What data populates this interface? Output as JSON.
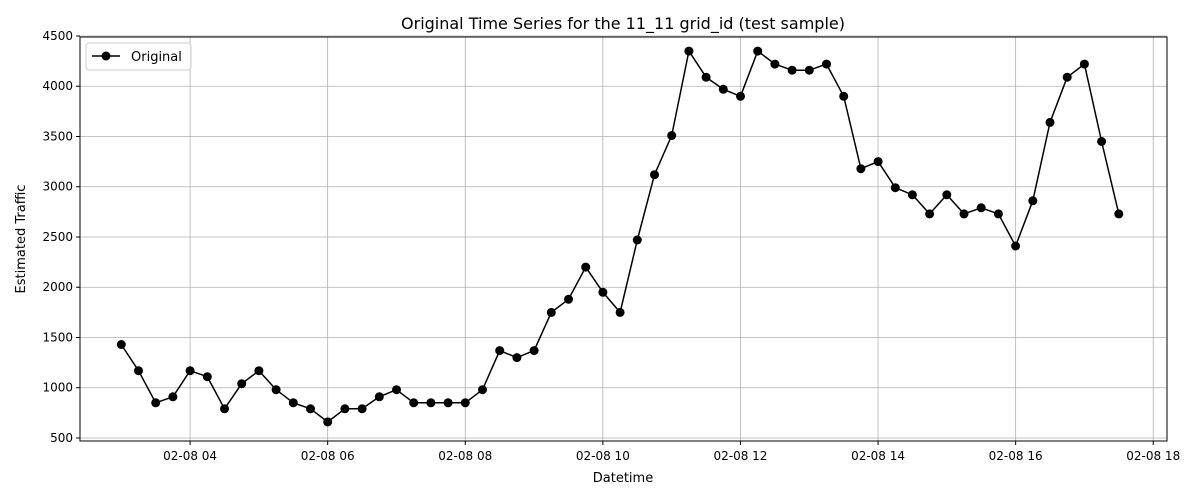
{
  "chart_data": {
    "type": "line",
    "title": "Original Time Series for the 11_11 grid_id (test sample)",
    "xlabel": "Datetime",
    "ylabel": "Estimated Traffic",
    "x_tick_labels": [
      "02-08 04",
      "02-08 06",
      "02-08 08",
      "02-08 10",
      "02-08 12",
      "02-08 14",
      "02-08 16",
      "02-08 18"
    ],
    "x_tick_hours": [
      4,
      6,
      8,
      10,
      12,
      14,
      16,
      18
    ],
    "y_ticks": [
      500,
      1000,
      1500,
      2000,
      2500,
      3000,
      3500,
      4000,
      4500
    ],
    "y_tick_labels": [
      "500",
      "1000",
      "1500",
      "2000",
      "2500",
      "3000",
      "3500",
      "4000",
      "4500"
    ],
    "xlim_hours": [
      2.4,
      18.2
    ],
    "ylim": [
      470,
      4490
    ],
    "grid": true,
    "legend_position": "top-left",
    "series": [
      {
        "name": "Original",
        "color": "#000000",
        "marker": "circle",
        "x_hours": [
          3.0,
          3.25,
          3.5,
          3.75,
          4.0,
          4.25,
          4.5,
          4.75,
          5.0,
          5.25,
          5.5,
          5.75,
          6.0,
          6.25,
          6.5,
          6.75,
          7.0,
          7.25,
          7.5,
          7.75,
          8.0,
          8.25,
          8.5,
          8.75,
          9.0,
          9.25,
          9.5,
          9.75,
          10.0,
          10.25,
          10.5,
          10.75,
          11.0,
          11.25,
          11.5,
          11.75,
          12.0,
          12.25,
          12.5,
          12.75,
          13.0,
          13.25,
          13.5,
          13.75,
          14.0,
          14.25,
          14.5,
          14.75,
          15.0,
          15.25,
          15.5,
          15.75,
          16.0,
          16.25,
          16.5,
          16.75,
          17.0,
          17.25,
          17.5
        ],
        "values": [
          1430,
          1170,
          850,
          910,
          1170,
          1110,
          790,
          1040,
          1170,
          980,
          850,
          790,
          660,
          790,
          790,
          910,
          980,
          850,
          850,
          850,
          850,
          980,
          1370,
          1300,
          1370,
          1750,
          1880,
          2200,
          1950,
          1750,
          2470,
          3120,
          3510,
          4350,
          4090,
          3970,
          3900,
          4350,
          4220,
          4160,
          4160,
          4220,
          3900,
          3180,
          3250,
          2990,
          2920,
          2730,
          2920,
          2730,
          2790,
          2730,
          2410,
          2860,
          3640,
          4090,
          4220,
          3450,
          2730
        ]
      }
    ]
  }
}
